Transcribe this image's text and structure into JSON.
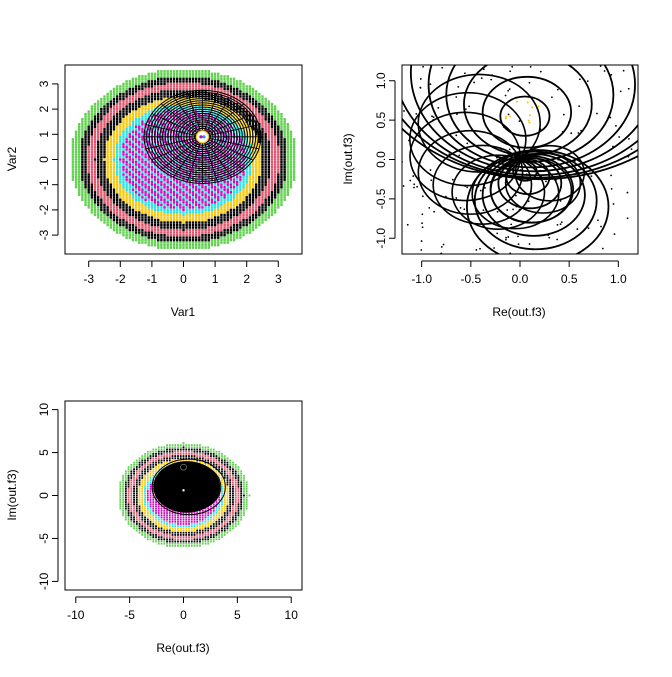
{
  "palette": [
    "#000000",
    "#DF536B",
    "#61D04F",
    "#2297E6",
    "#28E2E5",
    "#CD0BBC",
    "#F5C710",
    "#9E9E9E"
  ],
  "chart_data": [
    {
      "type": "scatter",
      "panel": "top-left",
      "xlabel": "Var1",
      "ylabel": "Var2",
      "xlim": [
        -3.75,
        3.75
      ],
      "ylim": [
        -3.75,
        3.75
      ],
      "xticks": [
        -3,
        -2,
        -1,
        0,
        1,
        2,
        3
      ],
      "yticks": [
        -3,
        -2,
        -1,
        0,
        1,
        2,
        3
      ],
      "grid": false,
      "legend": "none",
      "overlay": {
        "type": "concentric-circles",
        "center": [
          0.6,
          0.9
        ],
        "max_radius": 1.85
      }
    },
    {
      "type": "line",
      "panel": "top-right",
      "xlabel": "Re(out.f3)",
      "ylabel": "Im(out.f3)",
      "xlim": [
        -1.2,
        1.2
      ],
      "ylim": [
        -1.2,
        1.2
      ],
      "xticks": [
        -1.0,
        -0.5,
        0.0,
        0.5,
        1.0
      ],
      "yticks": [
        -1.0,
        -0.5,
        0.0,
        0.5,
        1.0
      ],
      "xtick_labels": [
        "-1.0",
        "-0.5",
        "0.0",
        "0.5",
        "1.0"
      ],
      "ytick_labels": [
        "-1.0",
        "-0.5",
        "0.0",
        "0.5",
        "1.0"
      ],
      "grid": false,
      "legend": "none"
    },
    {
      "type": "scatter",
      "panel": "bottom-left",
      "xlabel": "Re(out.f3)",
      "ylabel": "Im(out.f3)",
      "xlim": [
        -11,
        11
      ],
      "ylim": [
        -11,
        11
      ],
      "xticks": [
        -10,
        -5,
        0,
        5,
        10
      ],
      "yticks": [
        -10,
        -5,
        0,
        5,
        10
      ],
      "grid": false,
      "legend": "none"
    }
  ]
}
